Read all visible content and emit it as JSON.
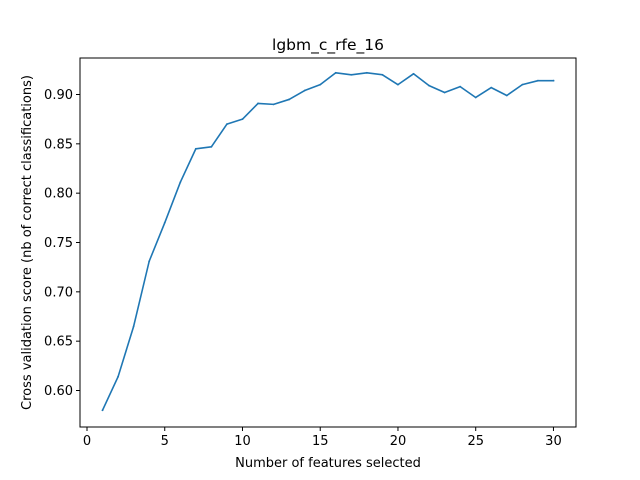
{
  "chart_data": {
    "type": "line",
    "title": "lgbm_c_rfe_16",
    "xlabel": "Number of features selected",
    "ylabel": "Cross validation score (nb of correct classifications)",
    "xlim": [
      -0.45,
      31.45
    ],
    "ylim": [
      0.563,
      0.937
    ],
    "xticks": [
      0,
      5,
      10,
      15,
      20,
      25,
      30
    ],
    "yticks": [
      0.6,
      0.65,
      0.7,
      0.75,
      0.8,
      0.85,
      0.9
    ],
    "ytick_labels": [
      "0.60",
      "0.65",
      "0.70",
      "0.75",
      "0.80",
      "0.85",
      "0.90"
    ],
    "grid": false,
    "series": [
      {
        "color": "#1f77b4",
        "x": [
          1,
          2,
          3,
          4,
          5,
          6,
          7,
          8,
          9,
          10,
          11,
          12,
          13,
          14,
          15,
          16,
          17,
          18,
          19,
          20,
          21,
          22,
          23,
          24,
          25,
          26,
          27,
          28,
          29,
          30
        ],
        "y": [
          0.58,
          0.614,
          0.665,
          0.731,
          0.77,
          0.811,
          0.845,
          0.847,
          0.87,
          0.875,
          0.891,
          0.89,
          0.895,
          0.904,
          0.91,
          0.922,
          0.92,
          0.922,
          0.92,
          0.91,
          0.921,
          0.909,
          0.902,
          0.908,
          0.897,
          0.907,
          0.899,
          0.91,
          0.914,
          0.914
        ]
      }
    ]
  }
}
